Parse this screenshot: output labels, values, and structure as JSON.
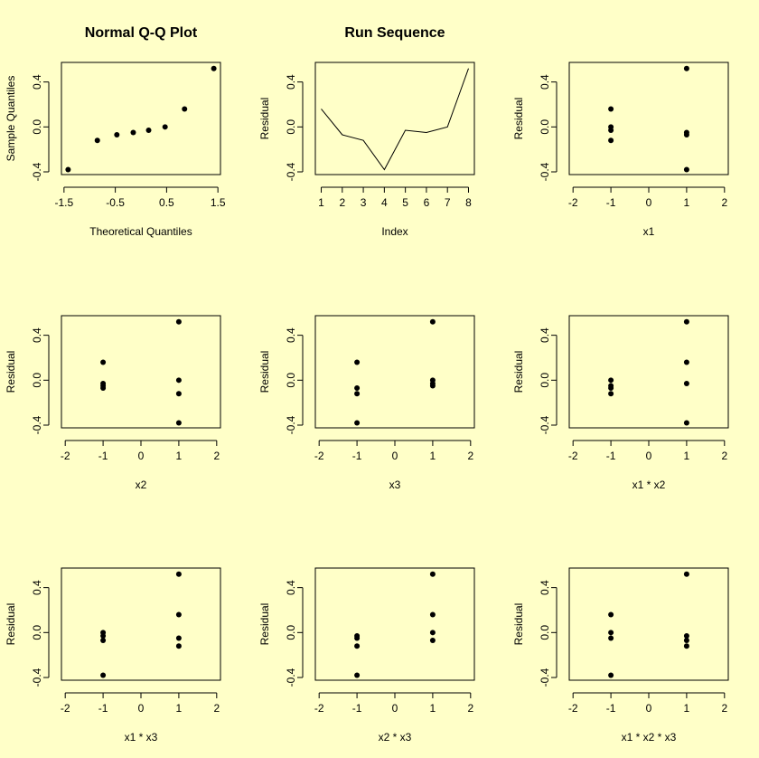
{
  "background": "#ffffc8",
  "point_color": "#000000",
  "chart_data": [
    {
      "type": "scatter",
      "title": "Normal Q-Q Plot",
      "xlabel": "Theoretical Quantiles",
      "ylabel": "Sample Quantiles",
      "xlim": [
        -1.55,
        1.55
      ],
      "ylim": [
        -0.4,
        0.55
      ],
      "xticks": [
        -1.5,
        -0.5,
        0.5,
        1.5
      ],
      "xtick_labels": [
        "-1.5",
        "-0.5",
        "0.5",
        "1.5"
      ],
      "yticks": [
        -0.4,
        0.0,
        0.4
      ],
      "ytick_labels": [
        "-0.4",
        "0.0",
        "0.4"
      ],
      "x": [
        -1.42,
        -0.85,
        -0.47,
        -0.15,
        0.15,
        0.47,
        0.85,
        1.42
      ],
      "y": [
        -0.38,
        -0.12,
        -0.07,
        -0.05,
        -0.03,
        0.0,
        0.16,
        0.52
      ]
    },
    {
      "type": "line",
      "title": "Run Sequence",
      "xlabel": "Index",
      "ylabel": "Residual",
      "xlim": [
        0.72,
        8.28
      ],
      "ylim": [
        -0.4,
        0.55
      ],
      "xticks": [
        1,
        2,
        3,
        4,
        5,
        6,
        7,
        8
      ],
      "xtick_labels": [
        "1",
        "2",
        "3",
        "4",
        "5",
        "6",
        "7",
        "8"
      ],
      "yticks": [
        -0.4,
        0.0,
        0.4
      ],
      "ytick_labels": [
        "-0.4",
        "0.0",
        "0.4"
      ],
      "x": [
        1,
        2,
        3,
        4,
        5,
        6,
        7,
        8
      ],
      "y": [
        0.16,
        -0.07,
        -0.12,
        -0.38,
        -0.03,
        -0.05,
        0.0,
        0.52
      ]
    },
    {
      "type": "scatter",
      "title": "",
      "xlabel": "x1",
      "ylabel": "Residual",
      "xlim": [
        -2.1,
        2.1
      ],
      "ylim": [
        -0.4,
        0.55
      ],
      "xticks": [
        -2,
        -1,
        0,
        1,
        2
      ],
      "xtick_labels": [
        "-2",
        "-1",
        "0",
        "1",
        "2"
      ],
      "yticks": [
        -0.4,
        0.0,
        0.4
      ],
      "ytick_labels": [
        "-0.4",
        "0.0",
        "0.4"
      ],
      "x": [
        -1,
        -1,
        -1,
        -1,
        1,
        1,
        1,
        1
      ],
      "y": [
        0.16,
        0.0,
        -0.03,
        -0.12,
        0.52,
        -0.05,
        -0.07,
        -0.38
      ]
    },
    {
      "type": "scatter",
      "title": "",
      "xlabel": "x2",
      "ylabel": "Residual",
      "xlim": [
        -2.1,
        2.1
      ],
      "ylim": [
        -0.4,
        0.55
      ],
      "xticks": [
        -2,
        -1,
        0,
        1,
        2
      ],
      "xtick_labels": [
        "-2",
        "-1",
        "0",
        "1",
        "2"
      ],
      "yticks": [
        -0.4,
        0.0,
        0.4
      ],
      "ytick_labels": [
        "-0.4",
        "0.0",
        "0.4"
      ],
      "x": [
        -1,
        -1,
        -1,
        -1,
        1,
        1,
        1,
        1
      ],
      "y": [
        0.16,
        -0.03,
        -0.05,
        -0.07,
        0.52,
        0.0,
        -0.12,
        -0.38
      ]
    },
    {
      "type": "scatter",
      "title": "",
      "xlabel": "x3",
      "ylabel": "Residual",
      "xlim": [
        -2.1,
        2.1
      ],
      "ylim": [
        -0.4,
        0.55
      ],
      "xticks": [
        -2,
        -1,
        0,
        1,
        2
      ],
      "xtick_labels": [
        "-2",
        "-1",
        "0",
        "1",
        "2"
      ],
      "yticks": [
        -0.4,
        0.0,
        0.4
      ],
      "ytick_labels": [
        "-0.4",
        "0.0",
        "0.4"
      ],
      "x": [
        -1,
        -1,
        -1,
        -1,
        1,
        1,
        1,
        1
      ],
      "y": [
        0.16,
        -0.07,
        -0.12,
        -0.38,
        0.52,
        0.0,
        -0.03,
        -0.05
      ]
    },
    {
      "type": "scatter",
      "title": "",
      "xlabel": "x1 * x2",
      "ylabel": "Residual",
      "xlim": [
        -2.1,
        2.1
      ],
      "ylim": [
        -0.4,
        0.55
      ],
      "xticks": [
        -2,
        -1,
        0,
        1,
        2
      ],
      "xtick_labels": [
        "-2",
        "-1",
        "0",
        "1",
        "2"
      ],
      "yticks": [
        -0.4,
        0.0,
        0.4
      ],
      "ytick_labels": [
        "-0.4",
        "0.0",
        "0.4"
      ],
      "x": [
        -1,
        -1,
        -1,
        -1,
        1,
        1,
        1,
        1
      ],
      "y": [
        0.0,
        -0.05,
        -0.07,
        -0.12,
        0.52,
        0.16,
        -0.03,
        -0.38
      ]
    },
    {
      "type": "scatter",
      "title": "",
      "xlabel": "x1 * x3",
      "ylabel": "Residual",
      "xlim": [
        -2.1,
        2.1
      ],
      "ylim": [
        -0.4,
        0.55
      ],
      "xticks": [
        -2,
        -1,
        0,
        1,
        2
      ],
      "xtick_labels": [
        "-2",
        "-1",
        "0",
        "1",
        "2"
      ],
      "yticks": [
        -0.4,
        0.0,
        0.4
      ],
      "ytick_labels": [
        "-0.4",
        "0.0",
        "0.4"
      ],
      "x": [
        -1,
        -1,
        -1,
        -1,
        1,
        1,
        1,
        1
      ],
      "y": [
        0.0,
        -0.03,
        -0.07,
        -0.38,
        0.52,
        0.16,
        -0.05,
        -0.12
      ]
    },
    {
      "type": "scatter",
      "title": "",
      "xlabel": "x2 * x3",
      "ylabel": "Residual",
      "xlim": [
        -2.1,
        2.1
      ],
      "ylim": [
        -0.4,
        0.55
      ],
      "xticks": [
        -2,
        -1,
        0,
        1,
        2
      ],
      "xtick_labels": [
        "-2",
        "-1",
        "0",
        "1",
        "2"
      ],
      "yticks": [
        -0.4,
        0.0,
        0.4
      ],
      "ytick_labels": [
        "-0.4",
        "0.0",
        "0.4"
      ],
      "x": [
        -1,
        -1,
        -1,
        -1,
        1,
        1,
        1,
        1
      ],
      "y": [
        -0.03,
        -0.05,
        -0.12,
        -0.38,
        0.52,
        0.16,
        0.0,
        -0.07
      ]
    },
    {
      "type": "scatter",
      "title": "",
      "xlabel": "x1 * x2 * x3",
      "ylabel": "Residual",
      "xlim": [
        -2.1,
        2.1
      ],
      "ylim": [
        -0.4,
        0.55
      ],
      "xticks": [
        -2,
        -1,
        0,
        1,
        2
      ],
      "xtick_labels": [
        "-2",
        "-1",
        "0",
        "1",
        "2"
      ],
      "yticks": [
        -0.4,
        0.0,
        0.4
      ],
      "ytick_labels": [
        "-0.4",
        "0.0",
        "0.4"
      ],
      "x": [
        -1,
        -1,
        -1,
        -1,
        1,
        1,
        1,
        1
      ],
      "y": [
        0.16,
        0.0,
        -0.05,
        -0.38,
        0.52,
        -0.03,
        -0.07,
        -0.12
      ]
    }
  ]
}
